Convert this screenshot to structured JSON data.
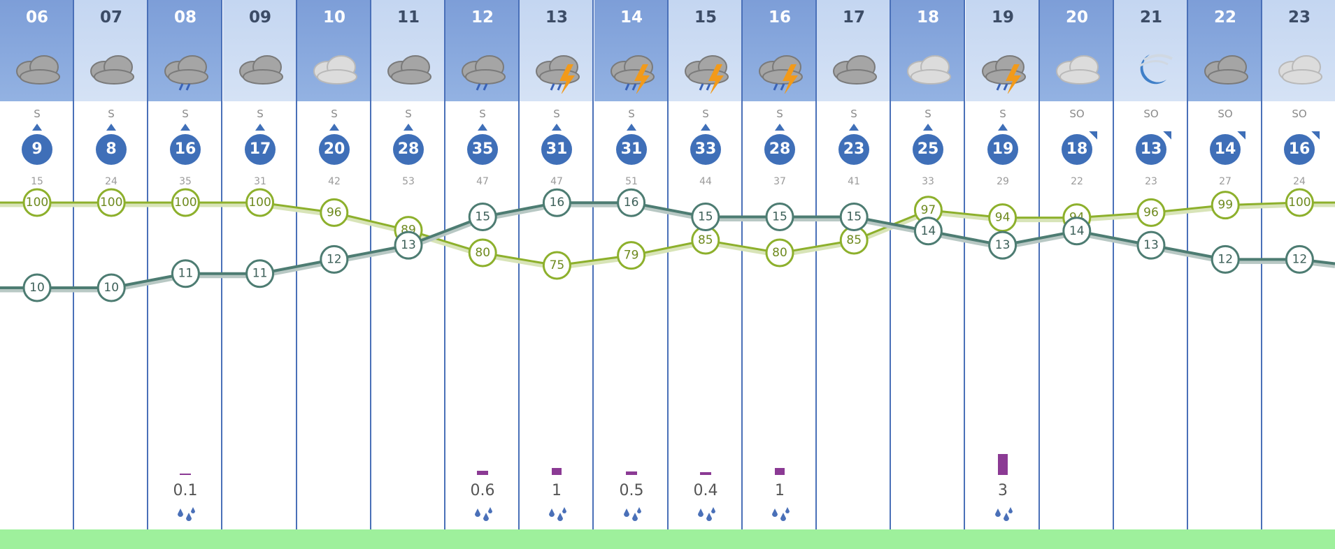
{
  "forecast": {
    "hours": [
      {
        "hour": "06",
        "sky": "cloudy",
        "wind_dir": "S",
        "wind_speed": "9",
        "gust": "15",
        "precip": ""
      },
      {
        "hour": "07",
        "sky": "cloudy",
        "wind_dir": "S",
        "wind_speed": "8",
        "gust": "24",
        "precip": ""
      },
      {
        "hour": "08",
        "sky": "rain",
        "wind_dir": "S",
        "wind_speed": "16",
        "gust": "35",
        "precip": "0.1"
      },
      {
        "hour": "09",
        "sky": "cloudy",
        "wind_dir": "S",
        "wind_speed": "17",
        "gust": "31",
        "precip": ""
      },
      {
        "hour": "10",
        "sky": "cloudy-light",
        "wind_dir": "S",
        "wind_speed": "20",
        "gust": "42",
        "precip": ""
      },
      {
        "hour": "11",
        "sky": "cloudy",
        "wind_dir": "S",
        "wind_speed": "28",
        "gust": "53",
        "precip": ""
      },
      {
        "hour": "12",
        "sky": "rain",
        "wind_dir": "S",
        "wind_speed": "35",
        "gust": "47",
        "precip": "0.6"
      },
      {
        "hour": "13",
        "sky": "storm",
        "wind_dir": "S",
        "wind_speed": "31",
        "gust": "47",
        "precip": "1"
      },
      {
        "hour": "14",
        "sky": "storm",
        "wind_dir": "S",
        "wind_speed": "31",
        "gust": "51",
        "precip": "0.5"
      },
      {
        "hour": "15",
        "sky": "storm",
        "wind_dir": "S",
        "wind_speed": "33",
        "gust": "44",
        "precip": "0.4"
      },
      {
        "hour": "16",
        "sky": "storm",
        "wind_dir": "S",
        "wind_speed": "28",
        "gust": "37",
        "precip": "1"
      },
      {
        "hour": "17",
        "sky": "cloudy",
        "wind_dir": "S",
        "wind_speed": "23",
        "gust": "41",
        "precip": ""
      },
      {
        "hour": "18",
        "sky": "cloudy-light",
        "wind_dir": "S",
        "wind_speed": "25",
        "gust": "33",
        "precip": ""
      },
      {
        "hour": "19",
        "sky": "storm-rain",
        "wind_dir": "S",
        "wind_speed": "19",
        "gust": "29",
        "precip": "3"
      },
      {
        "hour": "20",
        "sky": "cloudy-light",
        "wind_dir": "SO",
        "wind_speed": "18",
        "gust": "22",
        "precip": ""
      },
      {
        "hour": "21",
        "sky": "moon",
        "wind_dir": "SO",
        "wind_speed": "13",
        "gust": "23",
        "precip": ""
      },
      {
        "hour": "22",
        "sky": "cloudy",
        "wind_dir": "SO",
        "wind_speed": "14",
        "gust": "27",
        "precip": ""
      },
      {
        "hour": "23",
        "sky": "cloudy-light",
        "wind_dir": "SO",
        "wind_speed": "16",
        "gust": "24",
        "precip": ""
      }
    ]
  },
  "chart_data": {
    "type": "line",
    "x": [
      "06",
      "07",
      "08",
      "09",
      "10",
      "11",
      "12",
      "13",
      "14",
      "15",
      "16",
      "17",
      "18",
      "19",
      "20",
      "21",
      "22",
      "23"
    ],
    "series": [
      {
        "values": [
          100,
          100,
          100,
          100,
          96,
          89,
          80,
          75,
          79,
          85,
          80,
          85,
          97,
          94,
          94,
          96,
          99,
          100
        ],
        "color": "#8db02c"
      },
      {
        "values": [
          10,
          10,
          11,
          11,
          12,
          13,
          15,
          16,
          16,
          15,
          15,
          15,
          14,
          13,
          14,
          13,
          12,
          12
        ],
        "color": "#4d7c72"
      }
    ],
    "precip_values": [
      0,
      0,
      0.1,
      0,
      0,
      0,
      0.6,
      1,
      0.5,
      0.4,
      1,
      0,
      0,
      3,
      0,
      0,
      0,
      0
    ],
    "precip_color": "#8b3a94"
  },
  "colors": {
    "header_dark": "#7d9ed8",
    "header_light": "#c4d6f1",
    "band": "#e6eef9",
    "column_line": "#4a70b8",
    "wind_badge": "#3f6fb8",
    "bottom_bar": "#9ef09c"
  }
}
